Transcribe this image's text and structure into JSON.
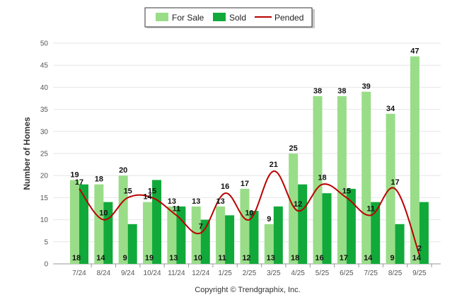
{
  "chart_data": {
    "type": "bar",
    "title": "",
    "xlabel": "",
    "ylabel": "Number of Homes",
    "ylim": [
      0,
      50
    ],
    "yticks": [
      0,
      5,
      10,
      15,
      20,
      25,
      30,
      35,
      40,
      45,
      50
    ],
    "grid": true,
    "legend_position": "top-center",
    "categories": [
      "7/24",
      "8/24",
      "9/24",
      "10/24",
      "11/24",
      "12/24",
      "1/25",
      "2/25",
      "3/25",
      "4/25",
      "5/25",
      "6/25",
      "7/25",
      "8/25",
      "9/25"
    ],
    "series": [
      {
        "name": "For Sale",
        "type": "bar",
        "color": "#99DD88",
        "values": [
          19,
          18,
          20,
          14,
          13,
          13,
          13,
          17,
          9,
          25,
          38,
          38,
          39,
          34,
          47
        ]
      },
      {
        "name": "Sold",
        "type": "bar",
        "color": "#11A93A",
        "values": [
          18,
          14,
          9,
          19,
          13,
          10,
          11,
          12,
          13,
          18,
          16,
          17,
          14,
          9,
          14
        ]
      },
      {
        "name": "Pended",
        "type": "line",
        "color": "#BB0000",
        "values": [
          17,
          10,
          15,
          15,
          11,
          7,
          16,
          10,
          21,
          12,
          18,
          15,
          11,
          17,
          2
        ]
      }
    ]
  },
  "legend": {
    "for_sale": "For Sale",
    "sold": "Sold",
    "pended": "Pended"
  },
  "footer": {
    "copyright": "Copyright © Trendgraphix, Inc."
  }
}
